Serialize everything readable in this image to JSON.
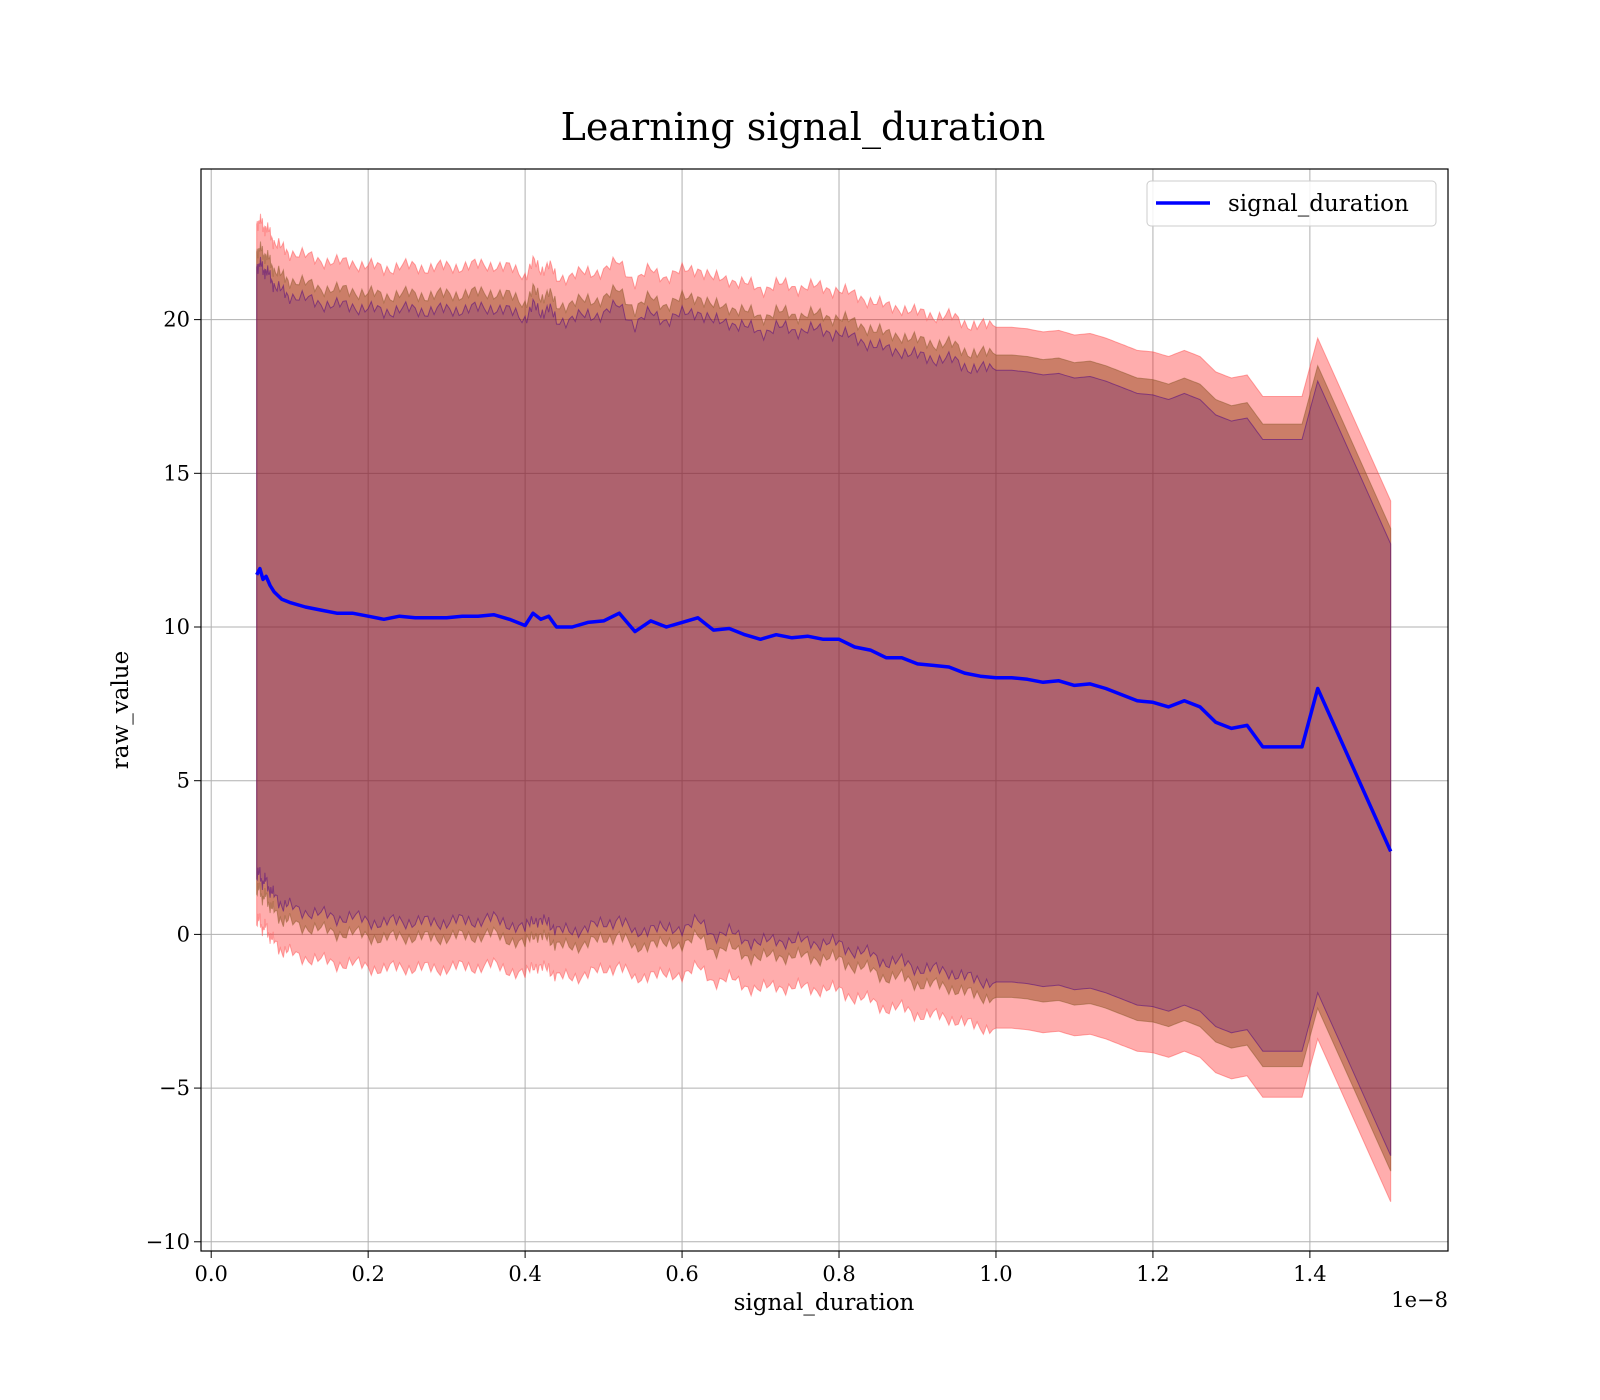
{
  "chart_data": {
    "type": "area",
    "title": "Learning signal_duration",
    "xlabel": "signal_duration",
    "ylabel": "raw_value",
    "x_offset_label": "1e−8",
    "xlim": [
      -0.013,
      1.576
    ],
    "ylim": [
      -10.3,
      24.9
    ],
    "x_ticks": [
      0.0,
      0.2,
      0.4,
      0.6,
      0.8,
      1.0,
      1.2,
      1.4
    ],
    "x_tick_labels": [
      "0.0",
      "0.2",
      "0.4",
      "0.6",
      "0.8",
      "1.0",
      "1.2",
      "1.4"
    ],
    "y_ticks": [
      -10,
      -5,
      0,
      5,
      10,
      15,
      20
    ],
    "y_tick_labels": [
      "−10",
      "−5",
      "0",
      "5",
      "10",
      "15",
      "20"
    ],
    "grid": true,
    "legend": {
      "position": "top-right",
      "entries": [
        "signal_duration"
      ]
    },
    "series": [
      {
        "name": "signal_duration",
        "color": "#0000ff",
        "x": [
          0.058,
          0.062,
          0.066,
          0.07,
          0.075,
          0.08,
          0.09,
          0.1,
          0.12,
          0.14,
          0.16,
          0.18,
          0.2,
          0.22,
          0.24,
          0.26,
          0.28,
          0.3,
          0.32,
          0.34,
          0.36,
          0.38,
          0.4,
          0.41,
          0.42,
          0.43,
          0.44,
          0.46,
          0.48,
          0.5,
          0.52,
          0.54,
          0.56,
          0.58,
          0.6,
          0.62,
          0.64,
          0.66,
          0.68,
          0.7,
          0.72,
          0.74,
          0.76,
          0.78,
          0.8,
          0.82,
          0.84,
          0.86,
          0.88,
          0.9,
          0.92,
          0.94,
          0.96,
          0.98,
          1.0,
          1.02,
          1.04,
          1.06,
          1.08,
          1.1,
          1.12,
          1.14,
          1.16,
          1.18,
          1.2,
          1.22,
          1.24,
          1.26,
          1.28,
          1.3,
          1.32,
          1.34,
          1.36,
          1.38,
          1.39,
          1.41,
          1.503
        ],
        "values": [
          11.7,
          11.9,
          11.55,
          11.65,
          11.35,
          11.15,
          10.9,
          10.8,
          10.65,
          10.55,
          10.45,
          10.45,
          10.35,
          10.25,
          10.35,
          10.3,
          10.3,
          10.3,
          10.35,
          10.35,
          10.4,
          10.25,
          10.05,
          10.45,
          10.25,
          10.35,
          10.0,
          10.0,
          10.15,
          10.2,
          10.45,
          9.85,
          10.2,
          10.0,
          10.15,
          10.3,
          9.9,
          9.95,
          9.75,
          9.6,
          9.75,
          9.65,
          9.7,
          9.6,
          9.6,
          9.35,
          9.25,
          9.0,
          9.0,
          8.8,
          8.75,
          8.7,
          8.5,
          8.4,
          8.35,
          8.35,
          8.3,
          8.2,
          8.25,
          8.1,
          8.15,
          8.0,
          7.8,
          7.6,
          7.55,
          7.4,
          7.6,
          7.4,
          6.9,
          6.7,
          6.8,
          6.1,
          6.1,
          6.1,
          6.1,
          8.0,
          2.7
        ]
      }
    ],
    "bands": [
      {
        "color": "#ff0000",
        "opacity": 0.32,
        "upper_offset": 11.4,
        "lower_offset": -11.4,
        "stroke": "#ff5050"
      },
      {
        "color": "#8b4513",
        "opacity": 0.45,
        "upper_offset": 10.5,
        "lower_offset": -10.4,
        "stroke": "#8b5a2b"
      },
      {
        "color": "#4b0082",
        "opacity": 0.22,
        "upper_offset": 10.0,
        "lower_offset": -9.9,
        "stroke": "#4b0082"
      }
    ]
  }
}
